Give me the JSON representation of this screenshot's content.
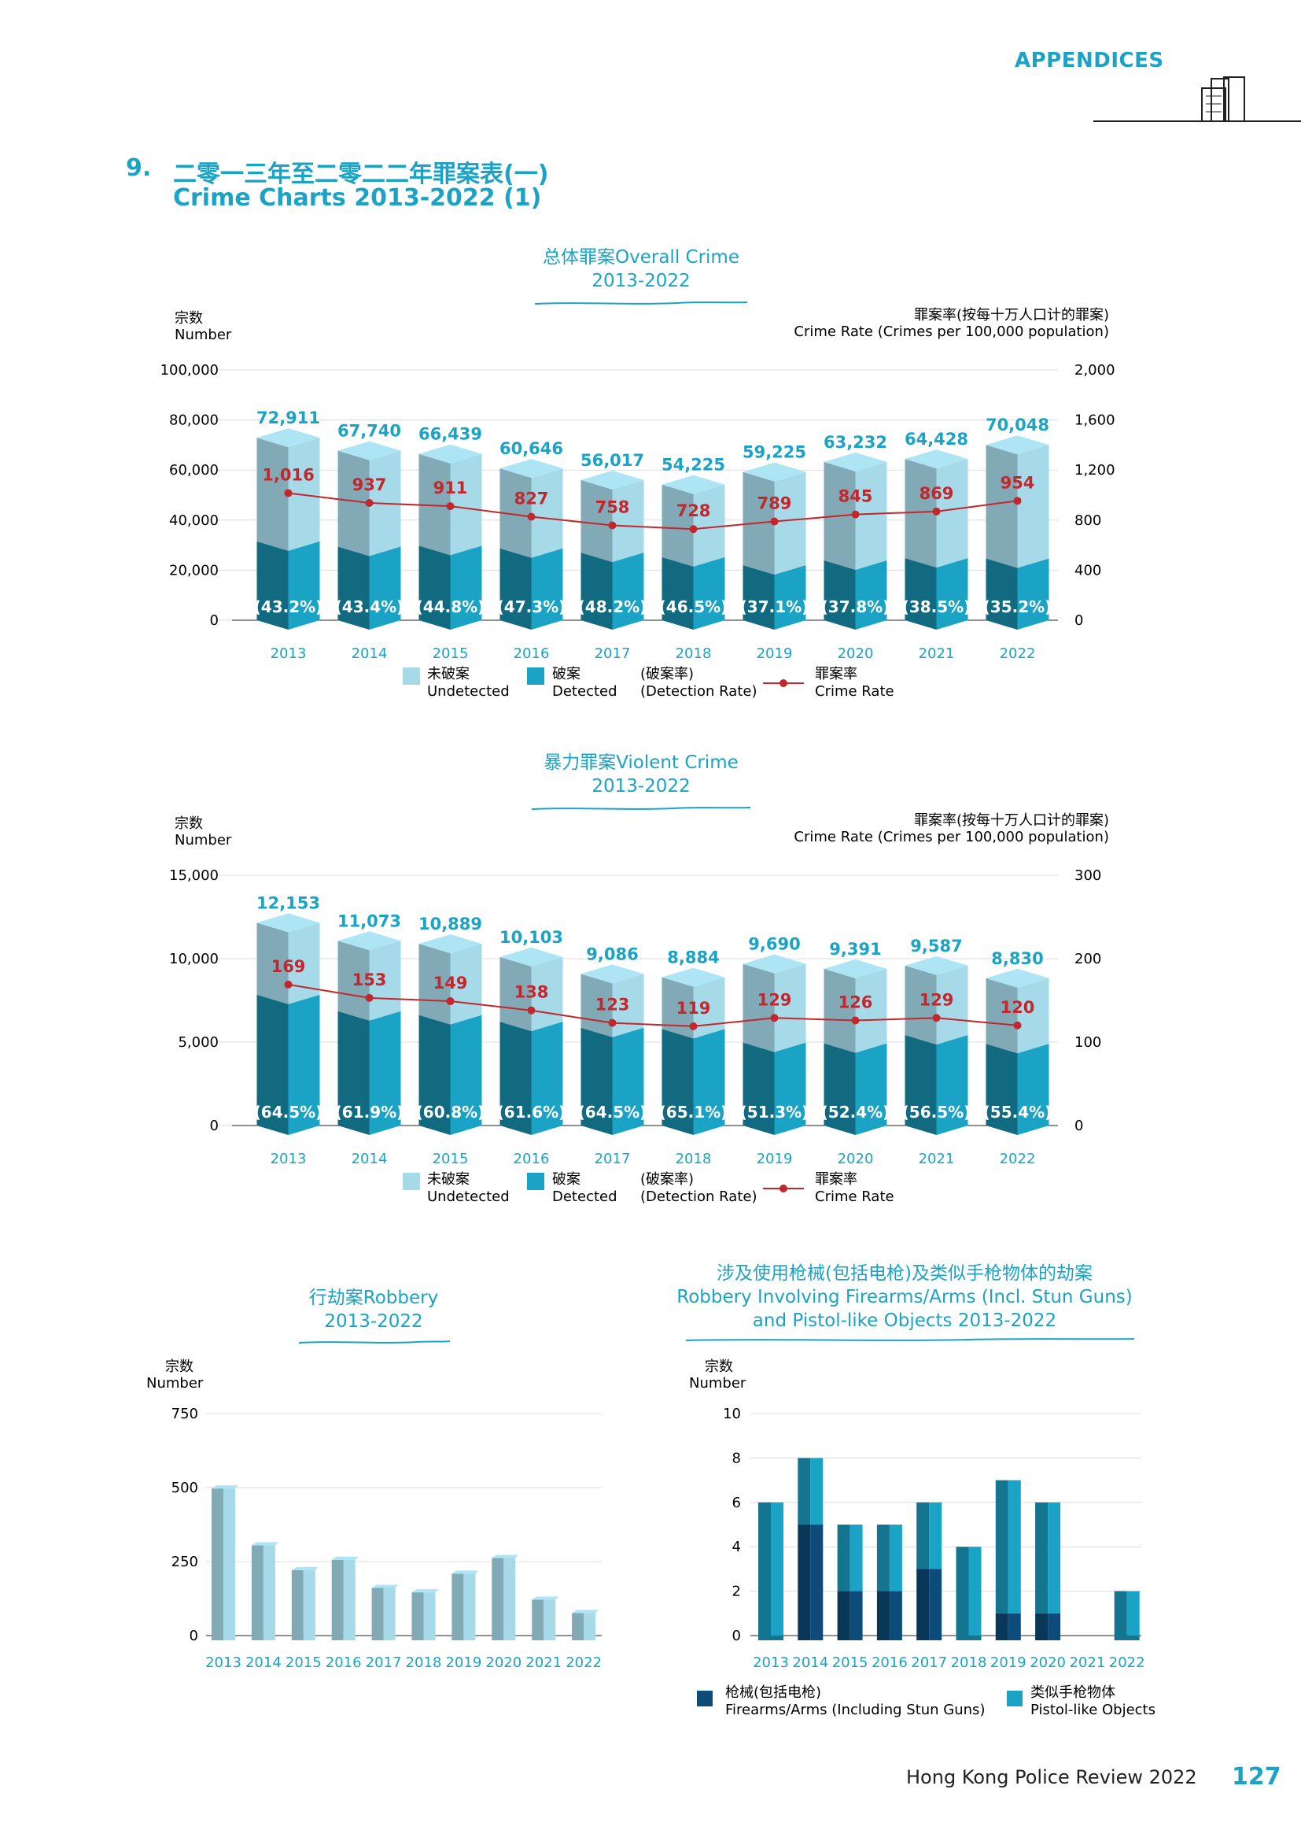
{
  "header": {
    "label": "APPENDICES"
  },
  "section": {
    "number": "9.",
    "title_cn": "二零一三年至二零二二年罪案表(一)",
    "title_en": "Crime Charts 2013-2022 (1)"
  },
  "footer": {
    "publication": "Hong Kong Police Review 2022",
    "page_number": "127"
  },
  "colors": {
    "accent": "#1ba3c6",
    "undetected": "#a6dae9",
    "detected": "#1ba3c6",
    "crime_rate": "#c1272d",
    "firearms": "#0d4c7a",
    "pistol_like": "#1ba3c6"
  },
  "legend_main": {
    "undetected_cn": "未破案",
    "undetected_en": "Undetected",
    "detected_cn": "破案",
    "detected_en": "Detected",
    "rate_cn": "(破案率)",
    "rate_en": "(Detection Rate)",
    "crime_rate_cn": "罪案率",
    "crime_rate_en": "Crime Rate"
  },
  "legend_firearms": {
    "firearms_cn": "枪械(包括电枪)",
    "firearms_en": "Firearms/Arms (Including Stun Guns)",
    "pistol_cn": "类似手枪物体",
    "pistol_en": "Pistol-like Objects"
  },
  "chart_data": [
    {
      "type": "bar",
      "title_cn": "总体罪案",
      "title_en": "Overall Crime",
      "subtitle": "2013-2022",
      "ylabel_cn": "宗数",
      "ylabel_en": "Number",
      "y2label_cn": "罪案率(按每十万人口计的罪案)",
      "y2label_en": "Crime Rate (Crimes per 100,000 population)",
      "ylim": [
        0,
        100000
      ],
      "y2lim": [
        0,
        2000
      ],
      "yticks": [
        "0",
        "20,000",
        "40,000",
        "60,000",
        "80,000",
        "100,000"
      ],
      "y2ticks": [
        "0",
        "400",
        "800",
        "1,200",
        "1,600",
        "2,000"
      ],
      "categories": [
        "2013",
        "2014",
        "2015",
        "2016",
        "2017",
        "2018",
        "2019",
        "2020",
        "2021",
        "2022"
      ],
      "totals": [
        72911,
        67740,
        66439,
        60646,
        56017,
        54225,
        59225,
        63232,
        64428,
        70048
      ],
      "total_labels": [
        "72,911",
        "67,740",
        "66,439",
        "60,646",
        "56,017",
        "54,225",
        "59,225",
        "63,232",
        "64,428",
        "70,048"
      ],
      "detection_rate": [
        43.2,
        43.4,
        44.8,
        47.3,
        48.2,
        46.5,
        37.1,
        37.8,
        38.5,
        35.2
      ],
      "detection_labels": [
        "(43.2%)",
        "(43.4%)",
        "(44.8%)",
        "(47.3%)",
        "(48.2%)",
        "(46.5%)",
        "(37.1%)",
        "(37.8%)",
        "(38.5%)",
        "(35.2%)"
      ],
      "crime_rate": [
        1016,
        937,
        911,
        827,
        758,
        728,
        789,
        845,
        869,
        954
      ],
      "crime_rate_labels": [
        "1,016",
        "937",
        "911",
        "827",
        "758",
        "728",
        "789",
        "845",
        "869",
        "954"
      ]
    },
    {
      "type": "bar",
      "title_cn": "暴力罪案",
      "title_en": "Violent Crime",
      "subtitle": "2013-2022",
      "ylabel_cn": "宗数",
      "ylabel_en": "Number",
      "y2label_cn": "罪案率(按每十万人口计的罪案)",
      "y2label_en": "Crime Rate (Crimes per 100,000 population)",
      "ylim": [
        0,
        15000
      ],
      "y2lim": [
        0,
        300
      ],
      "yticks": [
        "0",
        "5,000",
        "10,000",
        "15,000"
      ],
      "y2ticks": [
        "0",
        "100",
        "200",
        "300"
      ],
      "categories": [
        "2013",
        "2014",
        "2015",
        "2016",
        "2017",
        "2018",
        "2019",
        "2020",
        "2021",
        "2022"
      ],
      "totals": [
        12153,
        11073,
        10889,
        10103,
        9086,
        8884,
        9690,
        9391,
        9587,
        8830
      ],
      "total_labels": [
        "12,153",
        "11,073",
        "10,889",
        "10,103",
        "9,086",
        "8,884",
        "9,690",
        "9,391",
        "9,587",
        "8,830"
      ],
      "detection_rate": [
        64.5,
        61.9,
        60.8,
        61.6,
        64.5,
        65.1,
        51.3,
        52.4,
        56.5,
        55.4
      ],
      "detection_labels": [
        "(64.5%)",
        "(61.9%)",
        "(60.8%)",
        "(61.6%)",
        "(64.5%)",
        "(65.1%)",
        "(51.3%)",
        "(52.4%)",
        "(56.5%)",
        "(55.4%)"
      ],
      "crime_rate": [
        169,
        153,
        149,
        138,
        123,
        119,
        129,
        126,
        129,
        120
      ],
      "crime_rate_labels": [
        "169",
        "153",
        "149",
        "138",
        "123",
        "119",
        "129",
        "126",
        "129",
        "120"
      ]
    },
    {
      "type": "bar",
      "title_cn": "行劫案",
      "title_en": "Robbery",
      "subtitle": "2013-2022",
      "ylabel_cn": "宗数",
      "ylabel_en": "Number",
      "ylim": [
        0,
        750
      ],
      "yticks": [
        "0",
        "250",
        "500",
        "750"
      ],
      "categories": [
        "2013",
        "2014",
        "2015",
        "2016",
        "2017",
        "2018",
        "2019",
        "2020",
        "2021",
        "2022"
      ],
      "values": [
        497,
        305,
        221,
        256,
        161,
        146,
        209,
        262,
        121,
        76
      ]
    },
    {
      "type": "bar",
      "title_cn": "涉及使用枪械(包括电枪)及类似手枪物体的劫案",
      "title_en": "Robbery Involving Firearms/Arms (Incl. Stun Guns)",
      "subtitle": "and Pistol-like Objects 2013-2022",
      "ylabel_cn": "宗数",
      "ylabel_en": "Number",
      "ylim": [
        0,
        10
      ],
      "yticks": [
        "0",
        "2",
        "4",
        "6",
        "8",
        "10"
      ],
      "categories": [
        "2013",
        "2014",
        "2015",
        "2016",
        "2017",
        "2018",
        "2019",
        "2020",
        "2021",
        "2022"
      ],
      "series": [
        {
          "name": "Firearms/Arms (Including Stun Guns)",
          "values": [
            0,
            5,
            2,
            2,
            3,
            0,
            1,
            1,
            0,
            0
          ]
        },
        {
          "name": "Pistol-like Objects",
          "values": [
            6,
            3,
            3,
            3,
            3,
            4,
            6,
            5,
            0,
            2
          ]
        }
      ]
    }
  ]
}
